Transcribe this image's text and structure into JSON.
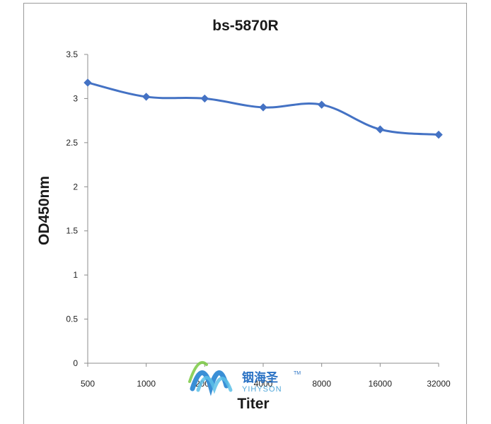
{
  "chart_data": {
    "type": "line",
    "title": "bs-5870R",
    "xlabel": "Titer",
    "ylabel": "OD450nm",
    "categories": [
      "500",
      "1000",
      "2000",
      "4000",
      "8000",
      "16000",
      "32000"
    ],
    "series": [
      {
        "values": [
          3.18,
          3.02,
          3.0,
          2.9,
          2.93,
          2.65,
          2.59
        ],
        "color": "#4472c4"
      }
    ],
    "ylim": [
      0,
      3.5
    ],
    "yticks": [
      "0",
      "0.5",
      "1",
      "1.5",
      "2",
      "2.5",
      "3",
      "3.5"
    ],
    "grid": false,
    "legend": "none",
    "marker": "diamond",
    "smooth": true
  },
  "watermark": {
    "text_cn": "铟海圣",
    "text_en": "YIHYSON",
    "tm": "TM"
  }
}
